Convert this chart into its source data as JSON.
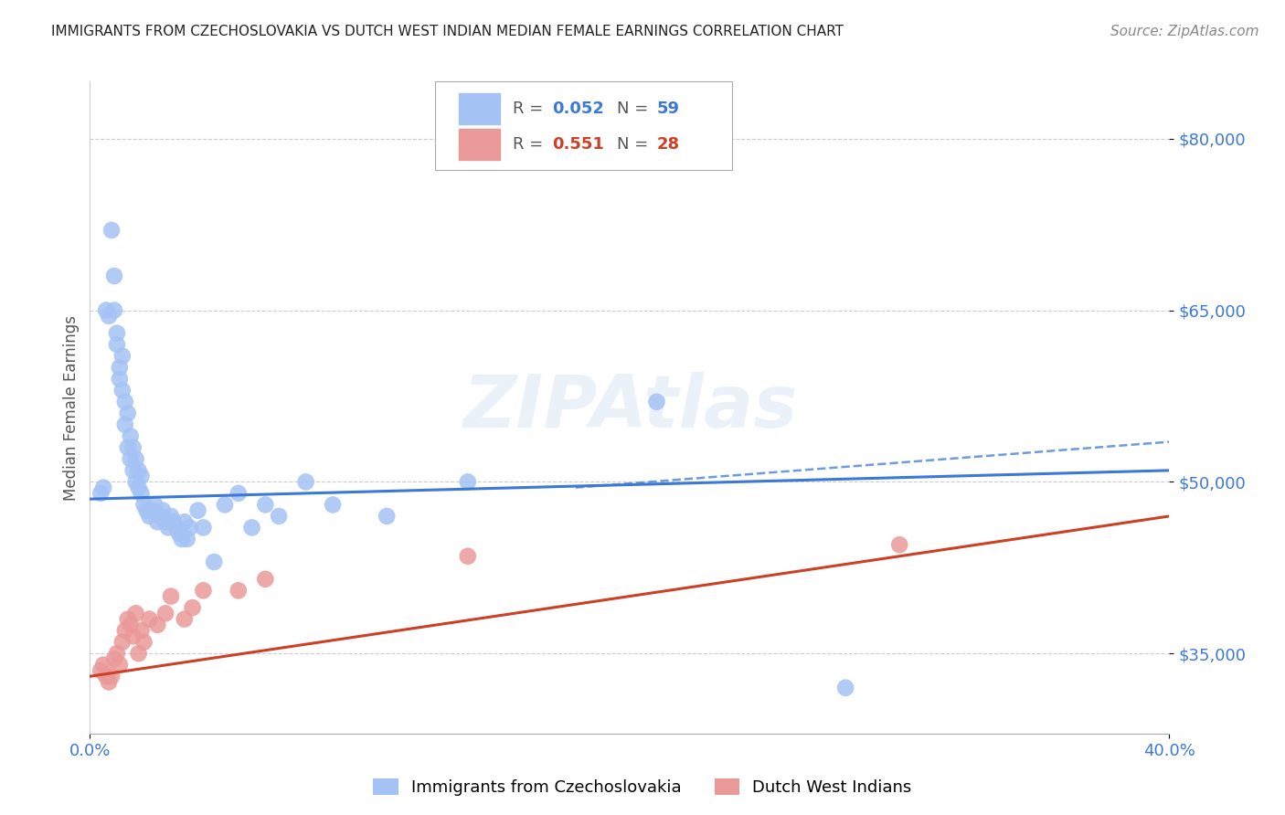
{
  "title": "IMMIGRANTS FROM CZECHOSLOVAKIA VS DUTCH WEST INDIAN MEDIAN FEMALE EARNINGS CORRELATION CHART",
  "source": "Source: ZipAtlas.com",
  "ylabel": "Median Female Earnings",
  "xlim": [
    0.0,
    0.4
  ],
  "ylim": [
    28000,
    85000
  ],
  "yticks": [
    35000,
    50000,
    65000,
    80000
  ],
  "ytick_labels": [
    "$35,000",
    "$50,000",
    "$65,000",
    "$80,000"
  ],
  "blue_R": "0.052",
  "blue_N": "59",
  "pink_R": "0.551",
  "pink_N": "28",
  "blue_color": "#a4c2f4",
  "pink_color": "#ea9999",
  "blue_line_color": "#3c78d8",
  "pink_line_color": "#cc4125",
  "tick_color": "#3c78d8",
  "grid_color": "#cccccc",
  "watermark": "ZIPAtlas",
  "blue_line_x0": 0.0,
  "blue_line_y0": 48500,
  "blue_line_x1": 0.4,
  "blue_line_y1": 51000,
  "pink_line_x0": 0.0,
  "pink_line_y0": 33000,
  "pink_line_x1": 0.4,
  "pink_line_y1": 47000,
  "dashed_line_x0": 0.18,
  "dashed_line_y0": 49500,
  "dashed_line_x1": 0.4,
  "dashed_line_y1": 53500,
  "blue_scatter_x": [
    0.004,
    0.005,
    0.006,
    0.007,
    0.008,
    0.009,
    0.009,
    0.01,
    0.01,
    0.011,
    0.011,
    0.012,
    0.012,
    0.013,
    0.013,
    0.014,
    0.014,
    0.015,
    0.015,
    0.016,
    0.016,
    0.017,
    0.017,
    0.018,
    0.018,
    0.019,
    0.019,
    0.02,
    0.021,
    0.022,
    0.023,
    0.024,
    0.025,
    0.026,
    0.027,
    0.028,
    0.029,
    0.03,
    0.031,
    0.032,
    0.033,
    0.034,
    0.035,
    0.036,
    0.037,
    0.04,
    0.042,
    0.046,
    0.05,
    0.055,
    0.06,
    0.065,
    0.07,
    0.08,
    0.09,
    0.11,
    0.14,
    0.21,
    0.28
  ],
  "blue_scatter_y": [
    49000,
    49500,
    65000,
    64500,
    72000,
    68000,
    65000,
    63000,
    62000,
    60000,
    59000,
    61000,
    58000,
    57000,
    55000,
    53000,
    56000,
    52000,
    54000,
    51000,
    53000,
    50000,
    52000,
    49500,
    51000,
    49000,
    50500,
    48000,
    47500,
    47000,
    47500,
    48000,
    46500,
    47000,
    47500,
    46500,
    46000,
    47000,
    46500,
    46000,
    45500,
    45000,
    46500,
    45000,
    46000,
    47500,
    46000,
    43000,
    48000,
    49000,
    46000,
    48000,
    47000,
    50000,
    48000,
    47000,
    50000,
    57000,
    32000
  ],
  "pink_scatter_x": [
    0.004,
    0.005,
    0.006,
    0.007,
    0.008,
    0.009,
    0.01,
    0.011,
    0.012,
    0.013,
    0.014,
    0.015,
    0.016,
    0.017,
    0.018,
    0.019,
    0.02,
    0.022,
    0.025,
    0.028,
    0.03,
    0.035,
    0.038,
    0.042,
    0.055,
    0.065,
    0.14,
    0.3
  ],
  "pink_scatter_y": [
    33500,
    34000,
    33000,
    32500,
    33000,
    34500,
    35000,
    34000,
    36000,
    37000,
    38000,
    37500,
    36500,
    38500,
    35000,
    37000,
    36000,
    38000,
    37500,
    38500,
    40000,
    38000,
    39000,
    40500,
    40500,
    41500,
    43500,
    44500
  ]
}
